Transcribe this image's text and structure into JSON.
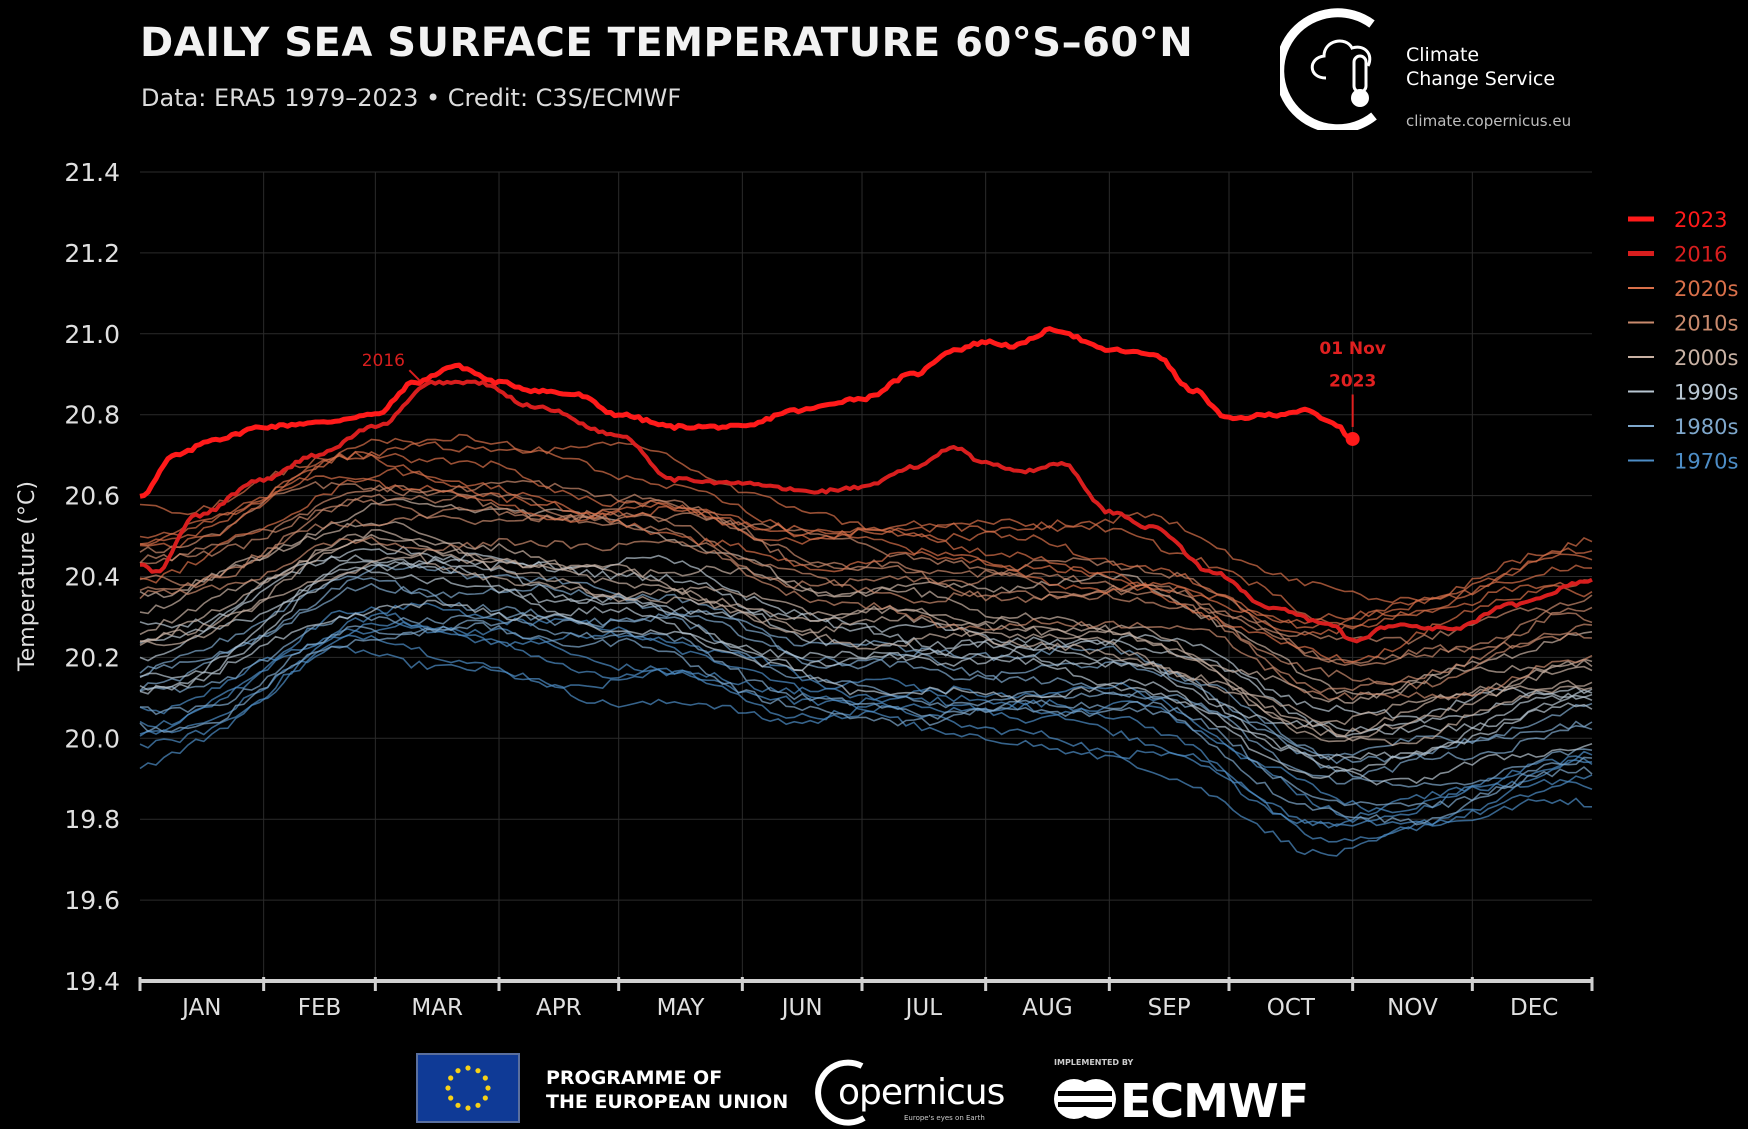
{
  "header": {
    "title": "DAILY SEA SURFACE TEMPERATURE 60°S–60°N",
    "subtitle": "Data: ERA5 1979–2023 • Credit: C3S/ECMWF"
  },
  "brand": {
    "name_line1": "Climate",
    "name_line2": "Change Service",
    "url": "climate.copernicus.eu"
  },
  "footer": {
    "eu_line1": "PROGRAMME OF",
    "eu_line2": "THE EUROPEAN UNION",
    "copernicus": "opernicus",
    "copernicus_tagline": "Europe's eyes on Earth",
    "implemented_by": "IMPLEMENTED BY",
    "ecmwf": "ECMWF"
  },
  "colors": {
    "year_2023": "#ff1a1a",
    "year_2016": "#d81e1e",
    "d2020s": "#d9704a",
    "d2010s": "#c98a6d",
    "d2000s": "#c9b2a4",
    "d1990s": "#b8c6d2",
    "d1980s": "#7fa8cc",
    "d1970s": "#4d8dc6"
  },
  "chart_data": {
    "type": "line",
    "title": "DAILY SEA SURFACE TEMPERATURE 60°S–60°N",
    "xlabel": "",
    "ylabel": "Temperature (°C)",
    "ylim": [
      19.4,
      21.4
    ],
    "yticks": [
      "19.4",
      "19.6",
      "19.8",
      "20.0",
      "20.2",
      "20.4",
      "20.6",
      "20.8",
      "21.0",
      "21.2",
      "21.4"
    ],
    "months": [
      "JAN",
      "FEB",
      "MAR",
      "APR",
      "MAY",
      "JUN",
      "JUL",
      "AUG",
      "SEP",
      "OCT",
      "NOV",
      "DEC"
    ],
    "grid": true,
    "legend_position": "right",
    "legend": [
      {
        "label": "2023",
        "color": "#ff1a1a",
        "bold": true
      },
      {
        "label": "2016",
        "color": "#d81e1e",
        "bold": true
      },
      {
        "label": "2020s",
        "color": "#d9704a"
      },
      {
        "label": "2010s",
        "color": "#c98a6d"
      },
      {
        "label": "2000s",
        "color": "#c9b2a4"
      },
      {
        "label": "1990s",
        "color": "#b8c6d2"
      },
      {
        "label": "1980s",
        "color": "#7fa8cc"
      },
      {
        "label": "1970s",
        "color": "#4d8dc6"
      }
    ],
    "series": [
      {
        "name": "2023",
        "x": [
          1,
          10,
          20,
          32,
          45,
          60,
          70,
          80,
          91,
          100,
          110,
          121,
          135,
          152,
          165,
          182,
          195,
          205,
          213,
          220,
          230,
          244,
          255,
          265,
          274,
          285,
          293,
          300,
          305
        ],
        "y": [
          20.6,
          20.7,
          20.74,
          20.77,
          20.78,
          20.8,
          20.88,
          20.92,
          20.88,
          20.86,
          20.85,
          20.8,
          20.77,
          20.77,
          20.81,
          20.84,
          20.9,
          20.96,
          20.98,
          20.97,
          21.01,
          20.96,
          20.95,
          20.86,
          20.79,
          20.8,
          20.81,
          20.78,
          20.74
        ]
      },
      {
        "name": "2016",
        "x": [
          1,
          5,
          15,
          32,
          45,
          60,
          75,
          85,
          100,
          121,
          135,
          152,
          170,
          182,
          195,
          205,
          213,
          223,
          232,
          244,
          255,
          270,
          285,
          300,
          305,
          315,
          330,
          345,
          365
        ],
        "y": [
          20.43,
          20.41,
          20.55,
          20.64,
          20.7,
          20.77,
          20.88,
          20.88,
          20.82,
          20.75,
          20.64,
          20.63,
          20.61,
          20.62,
          20.67,
          20.72,
          20.68,
          20.66,
          20.68,
          20.56,
          20.52,
          20.41,
          20.32,
          20.28,
          20.24,
          20.28,
          20.27,
          20.33,
          20.39
        ]
      },
      {
        "name": "2020s",
        "x": [
          1,
          60,
          120,
          182,
          244,
          305,
          365
        ],
        "y": [
          20.5,
          20.68,
          20.62,
          20.5,
          20.45,
          20.3,
          20.42
        ]
      },
      {
        "name": "2010s",
        "x": [
          1,
          60,
          120,
          182,
          244,
          305,
          365
        ],
        "y": [
          20.38,
          20.58,
          20.52,
          20.4,
          20.35,
          20.15,
          20.28
        ]
      },
      {
        "name": "2000s",
        "x": [
          1,
          60,
          120,
          182,
          244,
          305,
          365
        ],
        "y": [
          20.3,
          20.5,
          20.43,
          20.32,
          20.28,
          20.07,
          20.18
        ]
      },
      {
        "name": "1990s",
        "x": [
          1,
          60,
          120,
          182,
          244,
          305,
          365
        ],
        "y": [
          20.18,
          20.42,
          20.34,
          20.22,
          20.18,
          19.98,
          20.08
        ]
      },
      {
        "name": "1980s",
        "x": [
          1,
          60,
          120,
          182,
          244,
          305,
          365
        ],
        "y": [
          20.1,
          20.35,
          20.28,
          20.16,
          20.12,
          19.9,
          20.0
        ]
      },
      {
        "name": "1970s",
        "x": [
          1,
          60,
          120,
          182,
          244,
          305,
          365
        ],
        "y": [
          20.02,
          20.28,
          20.2,
          20.1,
          20.05,
          19.8,
          19.92
        ]
      }
    ],
    "annotations": [
      {
        "text": "2016",
        "x": 62,
        "y": 20.92,
        "color": "#d81e1e"
      },
      {
        "text": "01 Nov",
        "x": 305,
        "y": 20.95,
        "color": "#e02020"
      },
      {
        "text": "2023",
        "x": 305,
        "y": 20.87,
        "color": "#e02020"
      }
    ]
  }
}
